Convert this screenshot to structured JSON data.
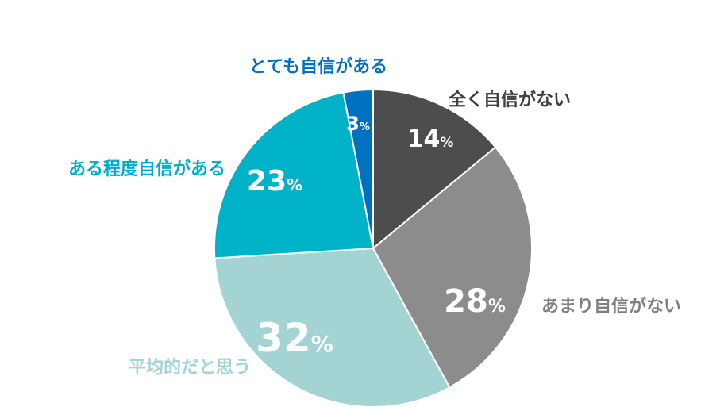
{
  "chart_data": {
    "type": "pie",
    "title": "",
    "start_angle_deg": 0,
    "direction": "clockwise",
    "slices": [
      {
        "label": "全く自信がない",
        "value": 14,
        "value_label": "14",
        "unit": "%",
        "color": "#4d4d4d",
        "label_color": "#404040"
      },
      {
        "label": "あまり自信がない",
        "value": 28,
        "value_label": "28",
        "unit": "%",
        "color": "#8c8c8c",
        "label_color": "#808080"
      },
      {
        "label": "平均的だと思う",
        "value": 32,
        "value_label": "32",
        "unit": "%",
        "color": "#a3d3d3",
        "label_color": "#a3d3d3"
      },
      {
        "label": "ある程度自信がある",
        "value": 23,
        "value_label": "23",
        "unit": "%",
        "color": "#00b2c8",
        "label_color": "#00acc8"
      },
      {
        "label": "とても自信がある",
        "value": 3,
        "value_label": "3",
        "unit": "%",
        "color": "#0070c0",
        "label_color": "#0070c0"
      }
    ]
  }
}
